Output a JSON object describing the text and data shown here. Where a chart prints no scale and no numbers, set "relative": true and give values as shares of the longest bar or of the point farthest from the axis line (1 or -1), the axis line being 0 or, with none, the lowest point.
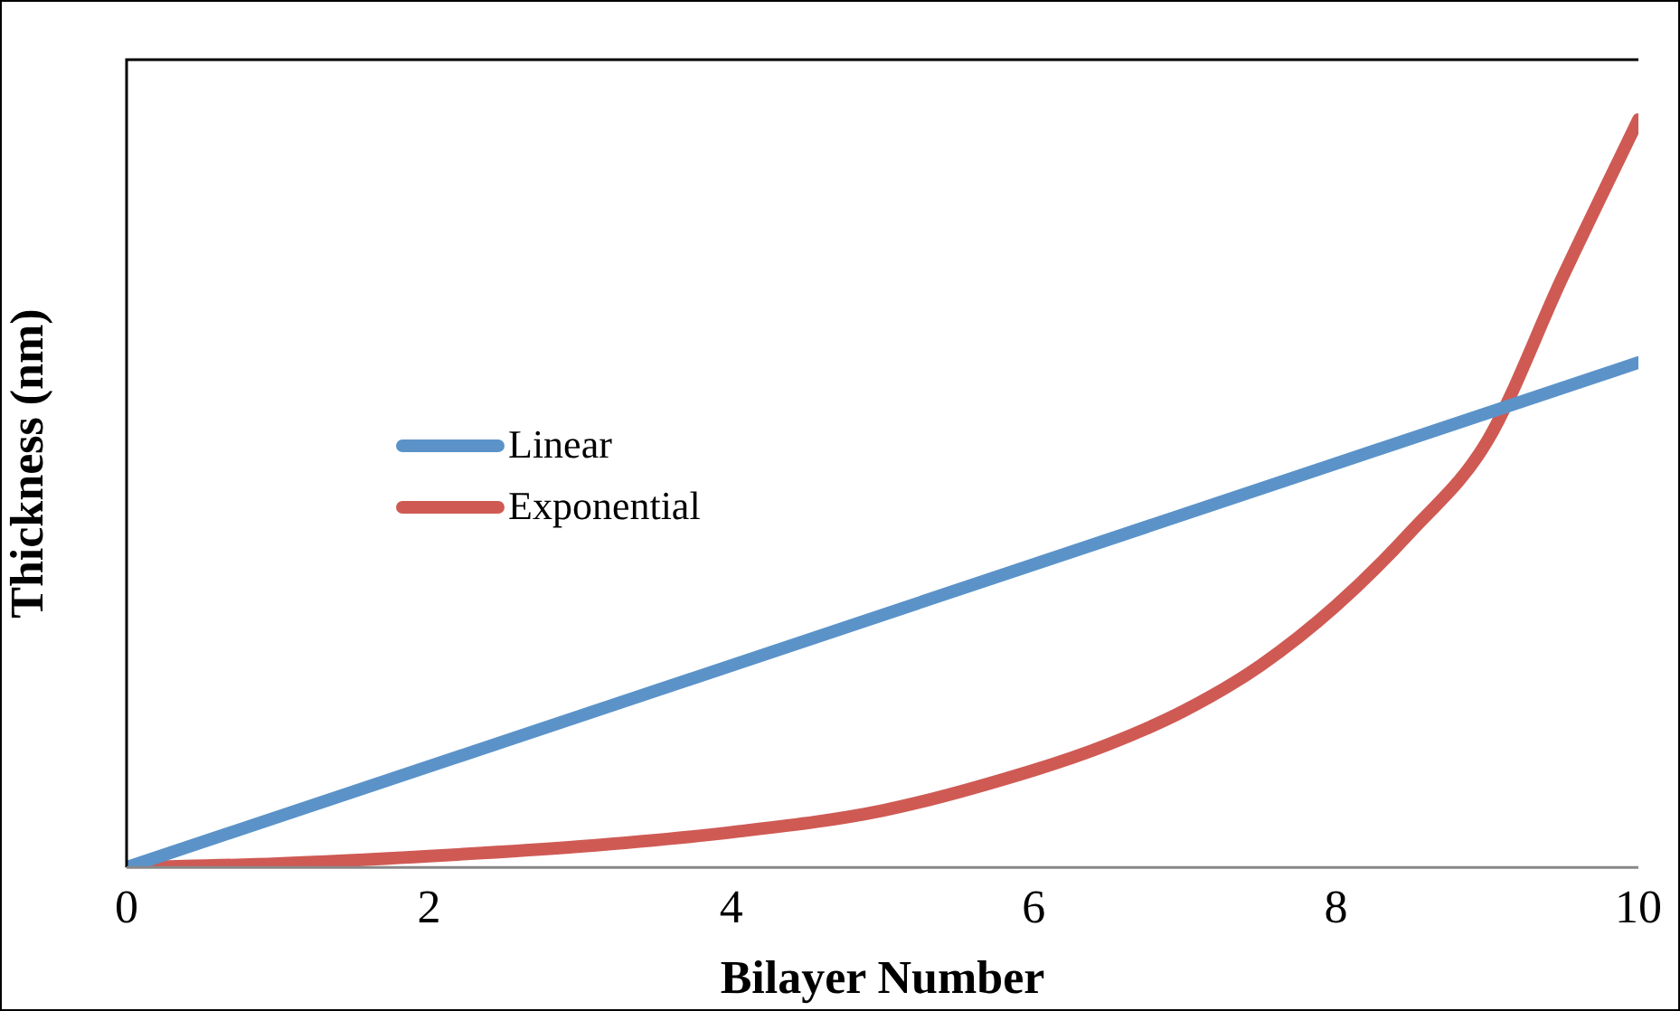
{
  "chart_data": {
    "type": "line",
    "xlabel": "Bilayer Number",
    "ylabel": "Thickness (nm)",
    "relative": true,
    "xlim": [
      0,
      10
    ],
    "xticks": [
      0,
      2,
      4,
      6,
      8,
      10
    ],
    "grid": false,
    "legend": "left",
    "marker": "none",
    "line_style": "solid",
    "series": [
      {
        "name": "Linear",
        "color": "#5b93c9",
        "x": [
          0,
          10
        ],
        "values": [
          0,
          0.675
        ]
      },
      {
        "name": "Exponential",
        "color": "#cf5a54",
        "x": [
          0,
          1,
          2,
          3,
          4,
          5,
          6,
          6.5,
          7,
          7.5,
          8,
          8.5,
          9,
          9.5,
          10
        ],
        "values": [
          0,
          0.005,
          0.015,
          0.028,
          0.047,
          0.076,
          0.13,
          0.165,
          0.21,
          0.27,
          0.35,
          0.45,
          0.57,
          0.79,
          1
        ]
      }
    ]
  }
}
